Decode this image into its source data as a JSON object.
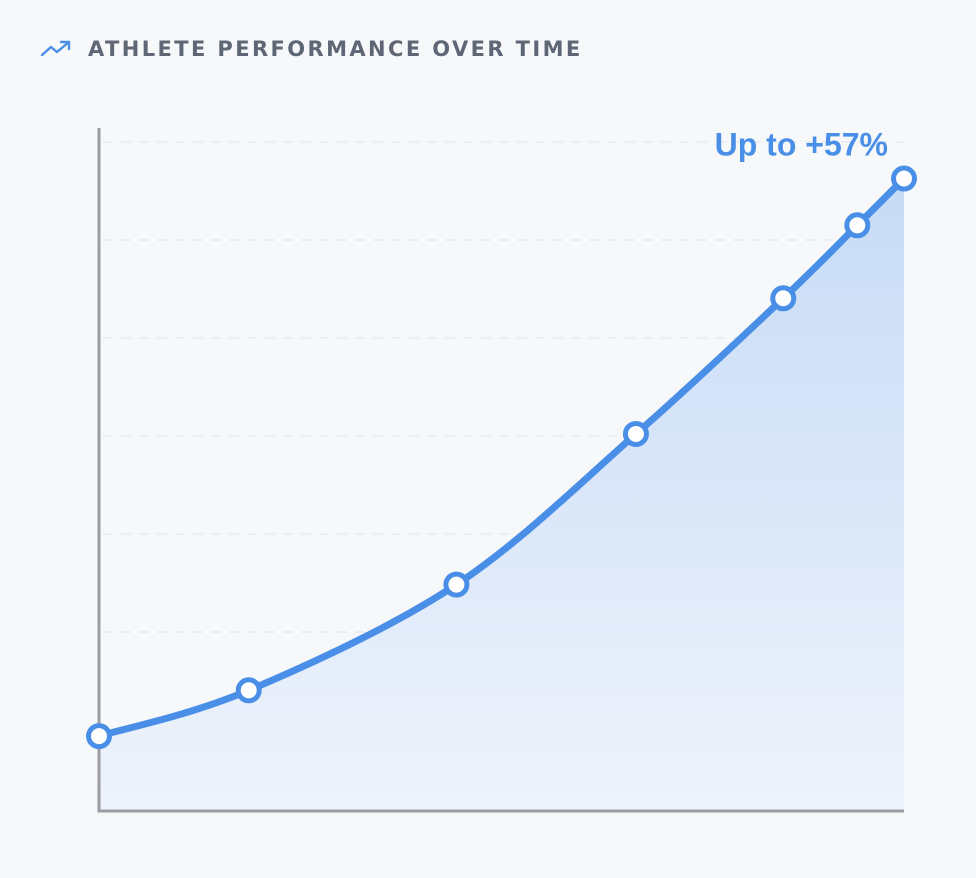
{
  "header": {
    "title": "ATHLETE PERFORMANCE OVER TIME",
    "icon": "trending-up-icon"
  },
  "colors": {
    "background": "#f7f8fa",
    "line": "#4a8fe7",
    "axis": "#9a9ca3",
    "grid": "#e7e9ee",
    "title": "#5f6776"
  },
  "chart_data": {
    "type": "area",
    "title": "ATHLETE PERFORMANCE OVER TIME",
    "xlabel": "",
    "ylabel": "",
    "grid": true,
    "x_tick_labels": [],
    "y_tick_labels": [],
    "annotation": "Up to +57%",
    "x": [
      0,
      18.6,
      44.4,
      66.7,
      85,
      94.2,
      100
    ],
    "values": [
      0,
      4.9,
      16.2,
      32.3,
      46.8,
      54.6,
      59.6
    ],
    "xlim": [
      0,
      100
    ],
    "ylim": [
      -8,
      65
    ]
  }
}
